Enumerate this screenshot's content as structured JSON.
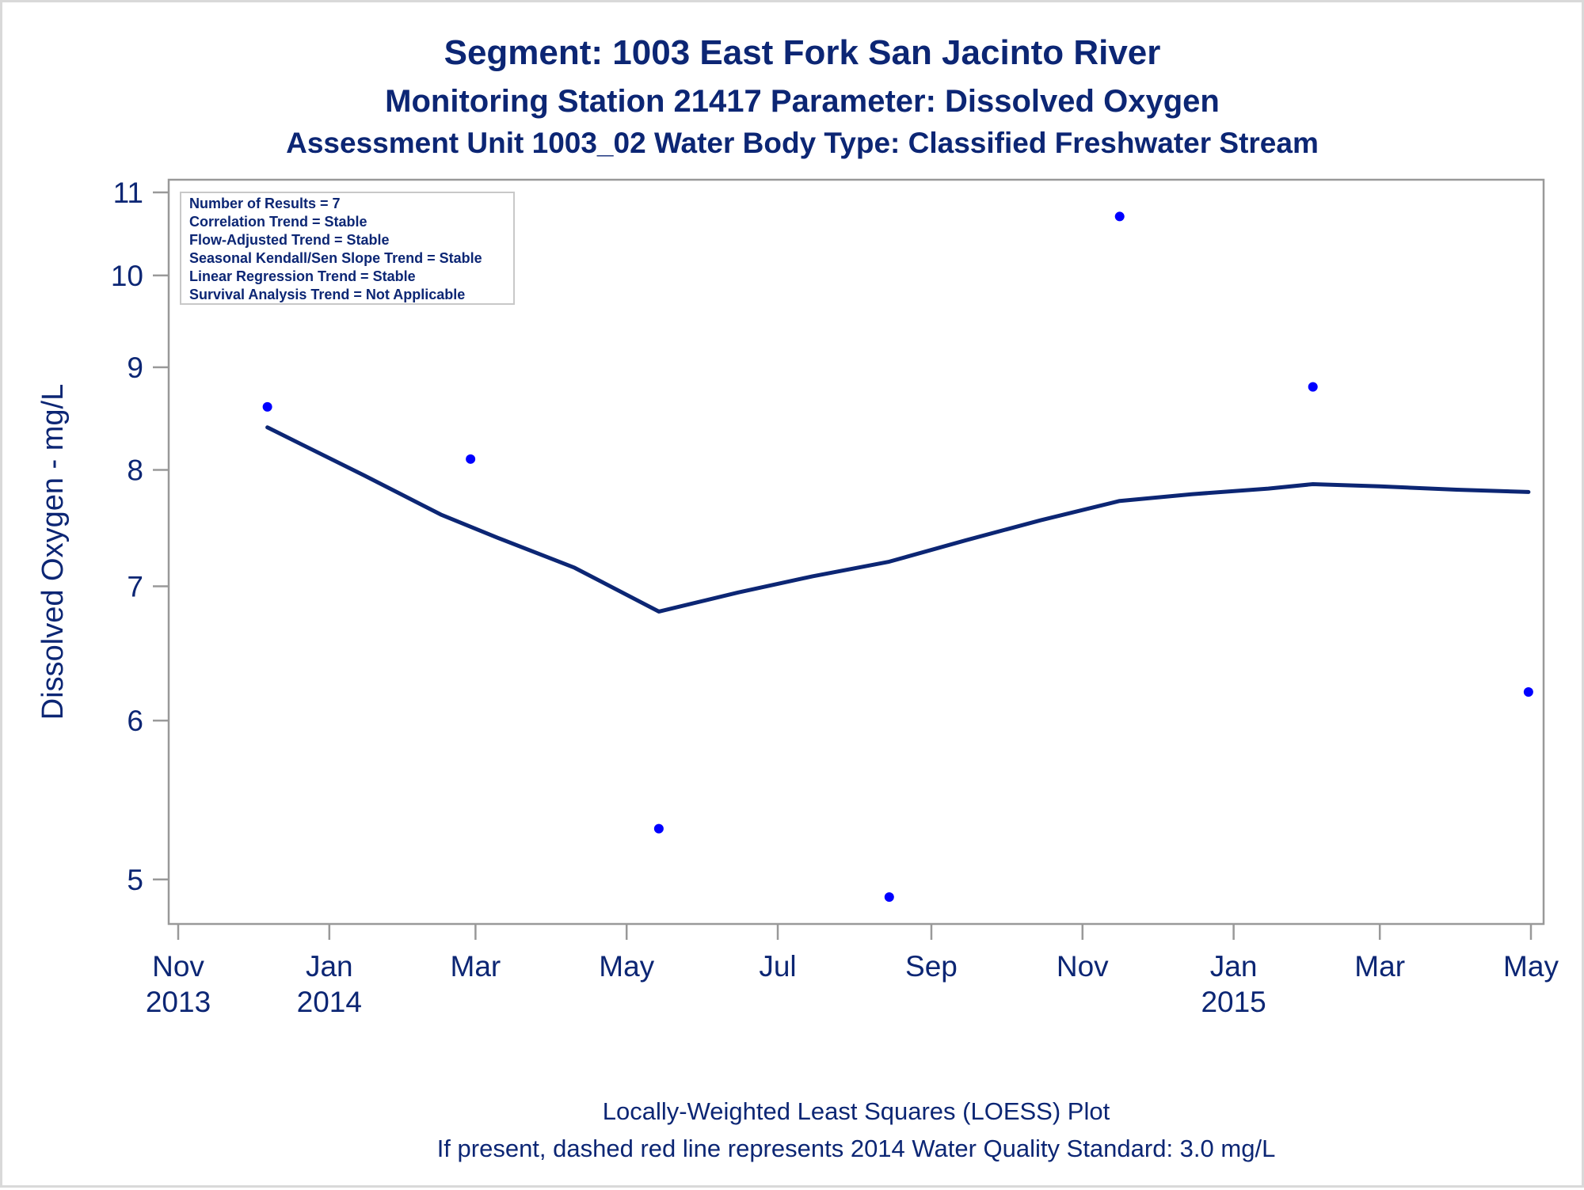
{
  "chart_data": {
    "type": "scatter",
    "titles": [
      "Segment: 1003  East Fork San Jacinto River",
      "Monitoring Station 21417 Parameter: Dissolved Oxygen",
      "Assessment Unit 1003_02   Water Body Type: Classified Freshwater Stream"
    ],
    "ylabel": "Dissolved Oxygen - mg/L",
    "yscale": "log",
    "ylim": [
      4.9,
      11
    ],
    "yticks": [
      5,
      6,
      7,
      8,
      9,
      10,
      11
    ],
    "xlim": [
      "2013-11-01",
      "2015-05-01"
    ],
    "xticks": [
      {
        "date": "2013-11-01",
        "label": "Nov",
        "year": "2013"
      },
      {
        "date": "2014-01-01",
        "label": "Jan",
        "year": "2014"
      },
      {
        "date": "2014-03-01",
        "label": "Mar",
        "year": ""
      },
      {
        "date": "2014-05-01",
        "label": "May",
        "year": ""
      },
      {
        "date": "2014-07-01",
        "label": "Jul",
        "year": ""
      },
      {
        "date": "2014-09-01",
        "label": "Sep",
        "year": ""
      },
      {
        "date": "2014-11-01",
        "label": "Nov",
        "year": ""
      },
      {
        "date": "2015-01-01",
        "label": "Jan",
        "year": "2015"
      },
      {
        "date": "2015-03-01",
        "label": "Mar",
        "year": ""
      },
      {
        "date": "2015-05-01",
        "label": "May",
        "year": ""
      }
    ],
    "points": [
      {
        "date": "2013-12-07",
        "value": 8.6
      },
      {
        "date": "2014-02-27",
        "value": 8.1
      },
      {
        "date": "2014-05-14",
        "value": 5.3
      },
      {
        "date": "2014-08-15",
        "value": 4.9
      },
      {
        "date": "2014-11-16",
        "value": 10.7
      },
      {
        "date": "2015-02-02",
        "value": 8.8
      },
      {
        "date": "2015-04-30",
        "value": 6.2
      }
    ],
    "loess": [
      {
        "date": "2013-12-07",
        "value": 8.4
      },
      {
        "date": "2014-01-15",
        "value": 7.95
      },
      {
        "date": "2014-02-15",
        "value": 7.6
      },
      {
        "date": "2014-03-10",
        "value": 7.4
      },
      {
        "date": "2014-04-10",
        "value": 7.15
      },
      {
        "date": "2014-05-14",
        "value": 6.8
      },
      {
        "date": "2014-06-15",
        "value": 6.95
      },
      {
        "date": "2014-07-15",
        "value": 7.08
      },
      {
        "date": "2014-08-15",
        "value": 7.2
      },
      {
        "date": "2014-09-15",
        "value": 7.38
      },
      {
        "date": "2014-10-15",
        "value": 7.55
      },
      {
        "date": "2014-11-16",
        "value": 7.72
      },
      {
        "date": "2014-12-15",
        "value": 7.78
      },
      {
        "date": "2015-01-15",
        "value": 7.83
      },
      {
        "date": "2015-02-02",
        "value": 7.87
      },
      {
        "date": "2015-03-01",
        "value": 7.85
      },
      {
        "date": "2015-04-01",
        "value": 7.82
      },
      {
        "date": "2015-04-30",
        "value": 7.8
      }
    ],
    "stats": [
      "Number of Results = 7",
      "Correlation Trend = Stable",
      "Flow-Adjusted Trend = Stable",
      "Seasonal Kendall/Sen Slope Trend = Stable",
      "Linear Regression Trend = Stable",
      "Survival Analysis Trend = Not Applicable"
    ],
    "footnotes": [
      "Locally-Weighted Least Squares (LOESS) Plot",
      "If present, dashed red line represents 2014 Water Quality Standard: 3.0 mg/L"
    ],
    "colors": {
      "text": "#0c2674",
      "points": "#0000ff",
      "line": "#0c2674",
      "frame": "#999999"
    }
  }
}
